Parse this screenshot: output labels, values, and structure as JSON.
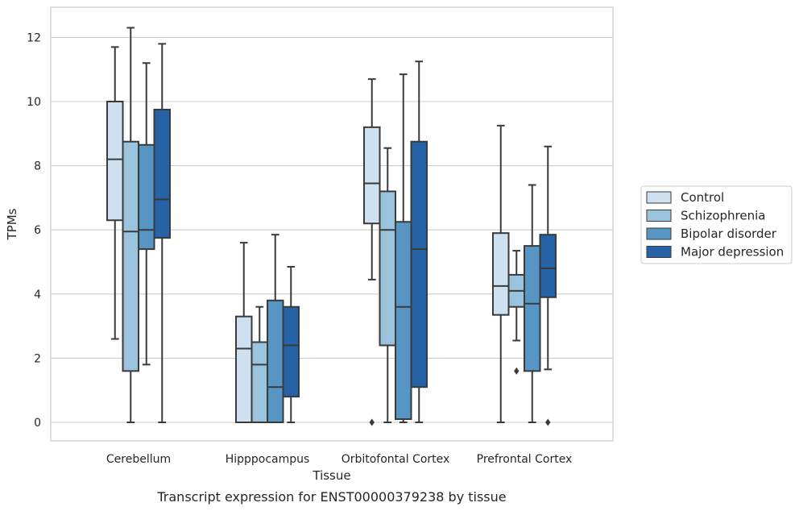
{
  "caption": "Transcript expression for ENST00000379238 by tissue",
  "chart_data": {
    "type": "box",
    "xlabel": "Tissue",
    "ylabel": "TPMs",
    "ylim": [
      -0.6,
      12.9
    ],
    "yticks": [
      0,
      2,
      4,
      6,
      8,
      10,
      12
    ],
    "grid": "horizontal",
    "legend_position": "right",
    "categories": [
      "Cerebellum",
      "Hipppocampus",
      "Orbitofontal Cortex",
      "Prefrontal Cortex"
    ],
    "series": [
      {
        "name": "Control",
        "color": "#cfe0f0",
        "boxes": [
          {
            "whislo": 2.6,
            "q1": 6.3,
            "med": 8.2,
            "q3": 10.0,
            "whishi": 11.7,
            "fliers": []
          },
          {
            "whislo": 0.0,
            "q1": 0.0,
            "med": 2.3,
            "q3": 3.3,
            "whishi": 5.6,
            "fliers": []
          },
          {
            "whislo": 4.45,
            "q1": 6.2,
            "med": 7.45,
            "q3": 9.2,
            "whishi": 10.7,
            "fliers": [
              0.0
            ]
          },
          {
            "whislo": 0.0,
            "q1": 3.35,
            "med": 4.25,
            "q3": 5.9,
            "whishi": 9.25,
            "fliers": []
          }
        ]
      },
      {
        "name": "Schizophrenia",
        "color": "#9ac3dd",
        "boxes": [
          {
            "whislo": 0.0,
            "q1": 1.6,
            "med": 5.95,
            "q3": 8.75,
            "whishi": 12.3,
            "fliers": []
          },
          {
            "whislo": 0.0,
            "q1": 0.0,
            "med": 1.8,
            "q3": 2.5,
            "whishi": 3.6,
            "fliers": []
          },
          {
            "whislo": 0.0,
            "q1": 2.4,
            "med": 6.0,
            "q3": 7.2,
            "whishi": 8.55,
            "fliers": []
          },
          {
            "whislo": 2.55,
            "q1": 3.6,
            "med": 4.1,
            "q3": 4.6,
            "whishi": 5.35,
            "fliers": [
              1.6
            ]
          }
        ]
      },
      {
        "name": "Bipolar disorder",
        "color": "#5796c4",
        "boxes": [
          {
            "whislo": 1.8,
            "q1": 5.4,
            "med": 6.0,
            "q3": 8.65,
            "whishi": 11.2,
            "fliers": []
          },
          {
            "whislo": 0.0,
            "q1": 0.0,
            "med": 1.1,
            "q3": 3.8,
            "whishi": 5.85,
            "fliers": []
          },
          {
            "whislo": 0.0,
            "q1": 0.1,
            "med": 3.6,
            "q3": 6.25,
            "whishi": 10.85,
            "fliers": []
          },
          {
            "whislo": 0.0,
            "q1": 1.6,
            "med": 3.7,
            "q3": 5.5,
            "whishi": 7.4,
            "fliers": []
          }
        ]
      },
      {
        "name": "Major depression",
        "color": "#2562a6",
        "boxes": [
          {
            "whislo": 0.0,
            "q1": 5.75,
            "med": 6.95,
            "q3": 9.75,
            "whishi": 11.8,
            "fliers": []
          },
          {
            "whislo": 0.0,
            "q1": 0.8,
            "med": 2.4,
            "q3": 3.6,
            "whishi": 4.85,
            "fliers": []
          },
          {
            "whislo": 0.0,
            "q1": 1.1,
            "med": 5.4,
            "q3": 8.75,
            "whishi": 11.25,
            "fliers": []
          },
          {
            "whislo": 1.65,
            "q1": 3.9,
            "med": 4.8,
            "q3": 5.85,
            "whishi": 8.6,
            "fliers": [
              0.0
            ]
          }
        ]
      }
    ]
  }
}
